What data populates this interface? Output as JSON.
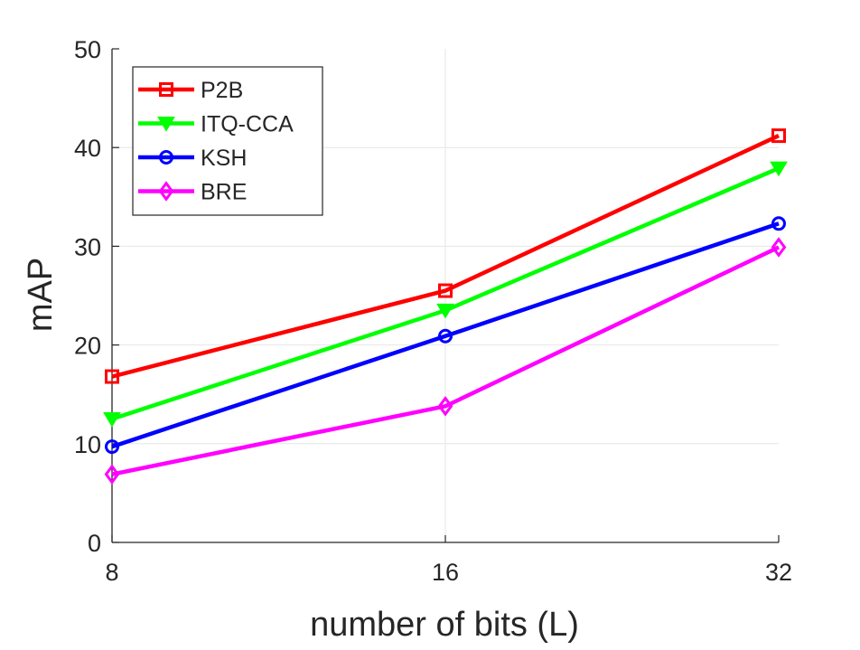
{
  "chart_data": {
    "type": "line",
    "title": "",
    "xlabel": "number of bits (L)",
    "ylabel": "mAP",
    "x": [
      8,
      16,
      32
    ],
    "x_tick_labels": [
      "8",
      "16",
      "32"
    ],
    "y_ticks": [
      0,
      10,
      20,
      30,
      40,
      50
    ],
    "y_tick_labels": [
      "0",
      "10",
      "20",
      "30",
      "40",
      "50"
    ],
    "ylim": [
      0,
      50
    ],
    "grid": true,
    "legend_position": "top-left",
    "series": [
      {
        "name": "P2B",
        "color": "#ff0000",
        "marker": "square",
        "values": [
          16.8,
          25.5,
          41.2
        ]
      },
      {
        "name": "ITQ-CCA",
        "color": "#00ff00",
        "marker": "triangle-down",
        "values": [
          12.5,
          23.5,
          37.9
        ]
      },
      {
        "name": "KSH",
        "color": "#0000ff",
        "marker": "circle",
        "values": [
          9.7,
          20.9,
          32.3
        ]
      },
      {
        "name": "BRE",
        "color": "#ff00ff",
        "marker": "diamond",
        "values": [
          6.9,
          13.8,
          29.9
        ]
      }
    ]
  }
}
